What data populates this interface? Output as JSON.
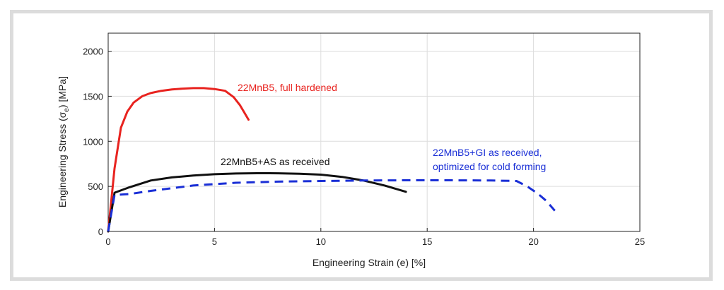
{
  "chart_data": {
    "type": "line",
    "xlabel": "Engineering Strain (e) [%]",
    "ylabel": "Engineering Stress (σ_e) [MPa]",
    "ylabel_parts": {
      "before": "Engineering Stress (σ",
      "sub": "e",
      "after": ") [MPa]"
    },
    "xlim": [
      0,
      25
    ],
    "ylim": [
      0,
      2200
    ],
    "xticks": [
      0,
      5,
      10,
      15,
      20,
      25
    ],
    "yticks": [
      0,
      500,
      1000,
      1500,
      2000
    ],
    "grid": true,
    "series": [
      {
        "name": "22MnB5, full hardened",
        "color": "#e8231f",
        "style": "solid",
        "x": [
          0,
          0.3,
          0.6,
          0.9,
          1.2,
          1.6,
          2.0,
          2.5,
          3.0,
          3.5,
          4.0,
          4.5,
          5.0,
          5.5,
          5.9,
          6.2,
          6.4,
          6.6
        ],
        "y": [
          0,
          700,
          1150,
          1330,
          1430,
          1500,
          1535,
          1560,
          1575,
          1585,
          1590,
          1590,
          1580,
          1560,
          1490,
          1400,
          1320,
          1240
        ]
      },
      {
        "name": "22MnB5+AS as received",
        "color": "#111111",
        "style": "solid",
        "x": [
          0,
          0.3,
          1,
          2,
          3,
          4,
          5,
          6,
          7,
          8,
          9,
          10,
          11,
          12,
          13,
          14
        ],
        "y": [
          0,
          430,
          490,
          565,
          600,
          620,
          635,
          643,
          646,
          645,
          640,
          630,
          605,
          565,
          510,
          440
        ]
      },
      {
        "name": "22MnB5+GI as received, optimized for cold forming",
        "color": "#1a2fd6",
        "style": "dashed",
        "x": [
          0,
          0.3,
          1,
          2,
          4,
          6,
          8,
          10,
          12,
          14,
          16,
          18,
          19.2,
          19.7,
          20.2,
          20.6,
          21.0
        ],
        "y": [
          0,
          405,
          415,
          450,
          510,
          540,
          553,
          560,
          565,
          568,
          568,
          565,
          560,
          500,
          420,
          340,
          230
        ]
      }
    ],
    "annotations": [
      {
        "text": "22MnB5, full hardened",
        "color": "#e8231f"
      },
      {
        "text": "22MnB5+AS as received",
        "color": "#111111"
      },
      {
        "text": "22MnB5+GI as received,",
        "color": "#1a2fd6"
      },
      {
        "text": "optimized for cold forming",
        "color": "#1a2fd6"
      }
    ]
  }
}
